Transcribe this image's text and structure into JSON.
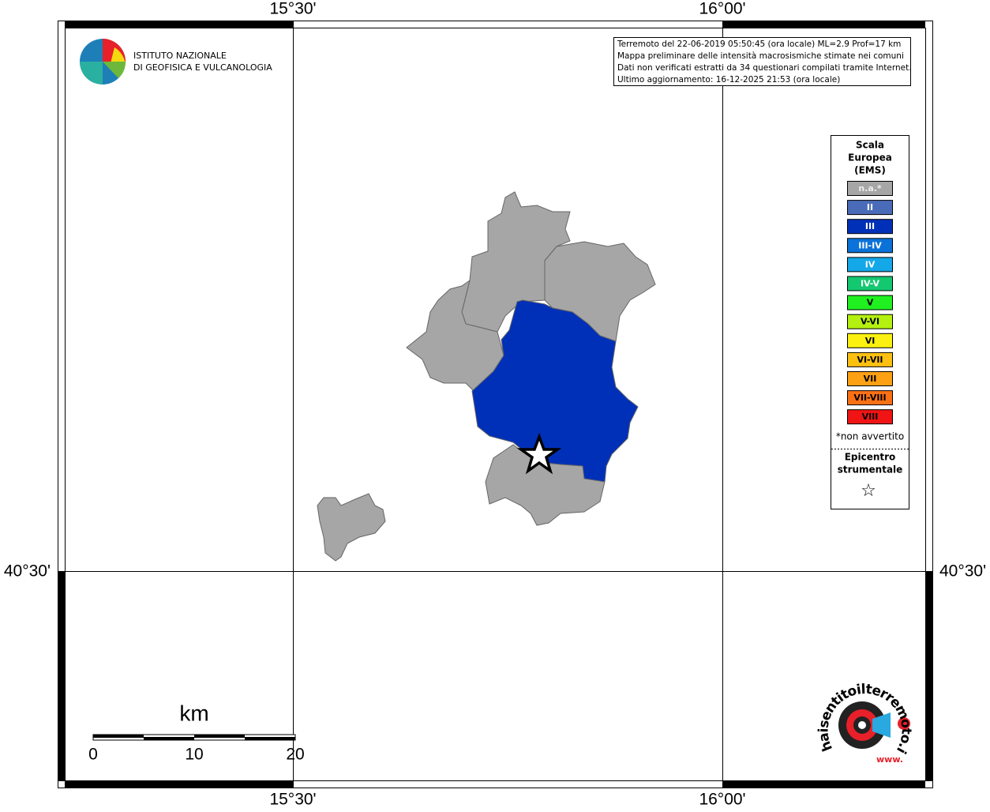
{
  "graticule": {
    "top_labels": [
      "15°30'",
      "16°00'"
    ],
    "bottom_labels": [
      "15°30'",
      "16°00'"
    ],
    "left_labels": [
      "40°30'"
    ],
    "right_labels": [
      "40°30'"
    ]
  },
  "institute_logo": {
    "line1": "ISTITUTO NAZIONALE",
    "line2": "DI GEOFISICA E VULCANOLOGIA"
  },
  "info_box": {
    "lines": [
      "Terremoto del 22-06-2019 05:50:45 (ora locale) ML=2.9 Prof=17 km",
      "Mappa preliminare delle intensità macrosismiche stimate nei comuni",
      "Dati non verificati estratti da 34 questionari compilati tramite Internet.",
      "Ultimo aggiornamento: 16-12-2025 21:53 (ora locale)"
    ]
  },
  "legend": {
    "title": [
      "Scala",
      "Europea",
      "(EMS)"
    ],
    "items": [
      {
        "label": "n.a.*",
        "color": "#a6a6a6"
      },
      {
        "label": "II",
        "color": "#4a6cb8"
      },
      {
        "label": "III",
        "color": "#0030b8"
      },
      {
        "label": "III-IV",
        "color": "#0a72d8"
      },
      {
        "label": "IV",
        "color": "#14a8e8"
      },
      {
        "label": "IV-V",
        "color": "#14c870"
      },
      {
        "label": "V",
        "color": "#20f020"
      },
      {
        "label": "V-VI",
        "color": "#b4f010"
      },
      {
        "label": "VI",
        "color": "#fcf010"
      },
      {
        "label": "VI-VII",
        "color": "#fcc010"
      },
      {
        "label": "VII",
        "color": "#fca014"
      },
      {
        "label": "VII-VIII",
        "color": "#fc7014"
      },
      {
        "label": "VIII",
        "color": "#f01414"
      }
    ],
    "note": "*non avvertito",
    "epicenter": [
      "Epicentro",
      "strumentale"
    ],
    "epicenter_symbol": "☆"
  },
  "scale_bar": {
    "unit": "km",
    "labels": [
      "0",
      "10",
      "20"
    ]
  },
  "site_logo": {
    "text": "haisentitoilterremoto.it",
    "www": "www."
  }
}
